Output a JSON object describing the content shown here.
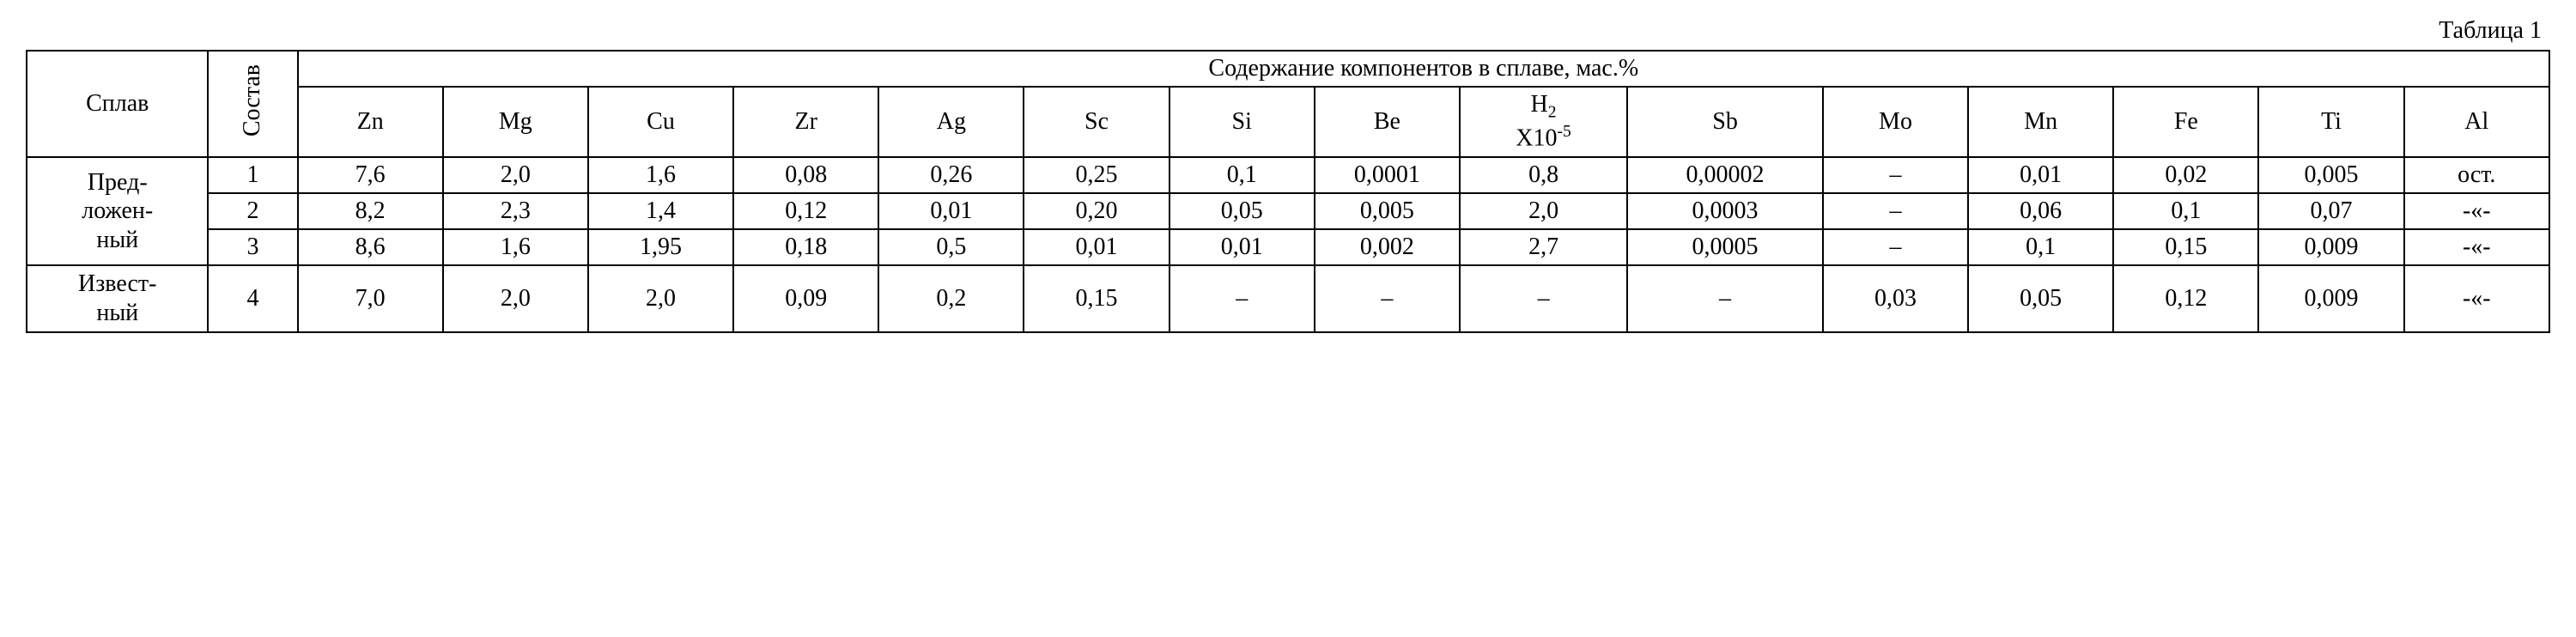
{
  "caption": "Таблица 1",
  "header": {
    "splav": "Сплав",
    "sostav": "Состав",
    "group": "Содержание компонентов в сплаве, мас.%",
    "cols": {
      "zn": "Zn",
      "mg": "Mg",
      "cu": "Cu",
      "zr": "Zr",
      "ag": "Ag",
      "sc": "Sc",
      "si": "Si",
      "be": "Be",
      "h2_line1_pre": "H",
      "h2_line1_sub": "2",
      "h2_line2_pre": "X10",
      "h2_line2_sup": "-5",
      "sb": "Sb",
      "mo": "Mo",
      "mn": "Mn",
      "fe": "Fe",
      "ti": "Ti",
      "al": "Al"
    }
  },
  "rowheads": {
    "proposed_l1": "Пред-",
    "proposed_l2": "ложен-",
    "proposed_l3": "ный",
    "known_l1": "Извест-",
    "known_l2": "ный"
  },
  "rows": {
    "r1": {
      "n": "1",
      "zn": "7,6",
      "mg": "2,0",
      "cu": "1,6",
      "zr": "0,08",
      "ag": "0,26",
      "sc": "0,25",
      "si": "0,1",
      "be": "0,0001",
      "h2": "0,8",
      "sb": "0,00002",
      "mo": "–",
      "mn": "0,01",
      "fe": "0,02",
      "ti": "0,005",
      "al": "ост."
    },
    "r2": {
      "n": "2",
      "zn": "8,2",
      "mg": "2,3",
      "cu": "1,4",
      "zr": "0,12",
      "ag": "0,01",
      "sc": "0,20",
      "si": "0,05",
      "be": "0,005",
      "h2": "2,0",
      "sb": "0,0003",
      "mo": "–",
      "mn": "0,06",
      "fe": "0,1",
      "ti": "0,07",
      "al": "-«-"
    },
    "r3": {
      "n": "3",
      "zn": "8,6",
      "mg": "1,6",
      "cu": "1,95",
      "zr": "0,18",
      "ag": "0,5",
      "sc": "0,01",
      "si": "0,01",
      "be": "0,002",
      "h2": "2,7",
      "sb": "0,0005",
      "mo": "–",
      "mn": "0,1",
      "fe": "0,15",
      "ti": "0,009",
      "al": "-«-"
    },
    "r4": {
      "n": "4",
      "zn": "7,0",
      "mg": "2,0",
      "cu": "2,0",
      "zr": "0,09",
      "ag": "0,2",
      "sc": "0,15",
      "si": "–",
      "be": "–",
      "h2": "–",
      "sb": "–",
      "mo": "0,03",
      "mn": "0,05",
      "fe": "0,12",
      "ti": "0,009",
      "al": "-«-"
    }
  }
}
